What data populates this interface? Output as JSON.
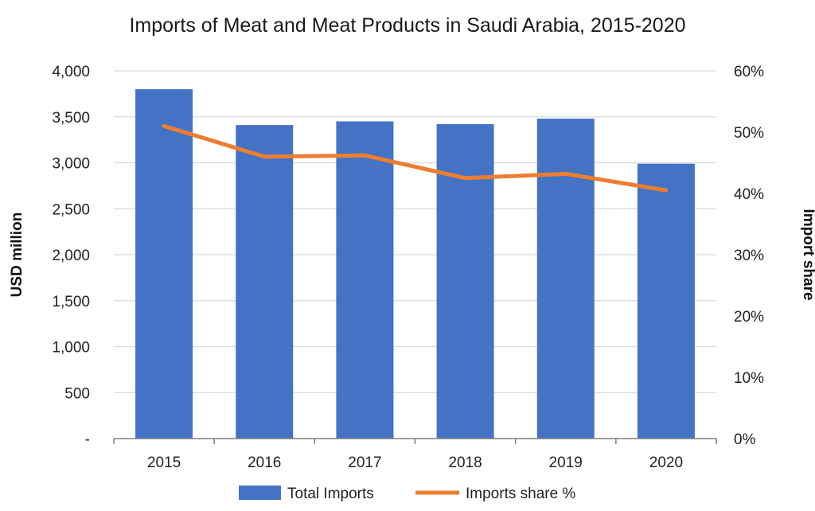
{
  "chart_data": {
    "type": "bar",
    "title": "Imports of Meat and Meat Products in Saudi Arabia, 2015-2020",
    "categories": [
      "2015",
      "2016",
      "2017",
      "2018",
      "2019",
      "2020"
    ],
    "series": [
      {
        "name": "Total Imports",
        "type": "bar",
        "axis": "left",
        "color": "#4472C4",
        "values": [
          3800,
          3410,
          3450,
          3420,
          3480,
          2990
        ]
      },
      {
        "name": "Imports share %",
        "type": "line",
        "axis": "right",
        "color": "#ED7D31",
        "values": [
          51,
          46,
          46.2,
          42.5,
          43.2,
          40.5
        ]
      }
    ],
    "ylabel": "USD million",
    "ylabel_right": "Import share",
    "ylim": [
      0,
      4000
    ],
    "ylim_right": [
      0,
      60
    ],
    "yticks": [
      "-",
      "500",
      "1,000",
      "1,500",
      "2,000",
      "2,500",
      "3,000",
      "3,500",
      "4,000"
    ],
    "yticks_right": [
      "0%",
      "10%",
      "20%",
      "30%",
      "40%",
      "50%",
      "60%"
    ],
    "grid": true,
    "legend_position": "bottom"
  }
}
